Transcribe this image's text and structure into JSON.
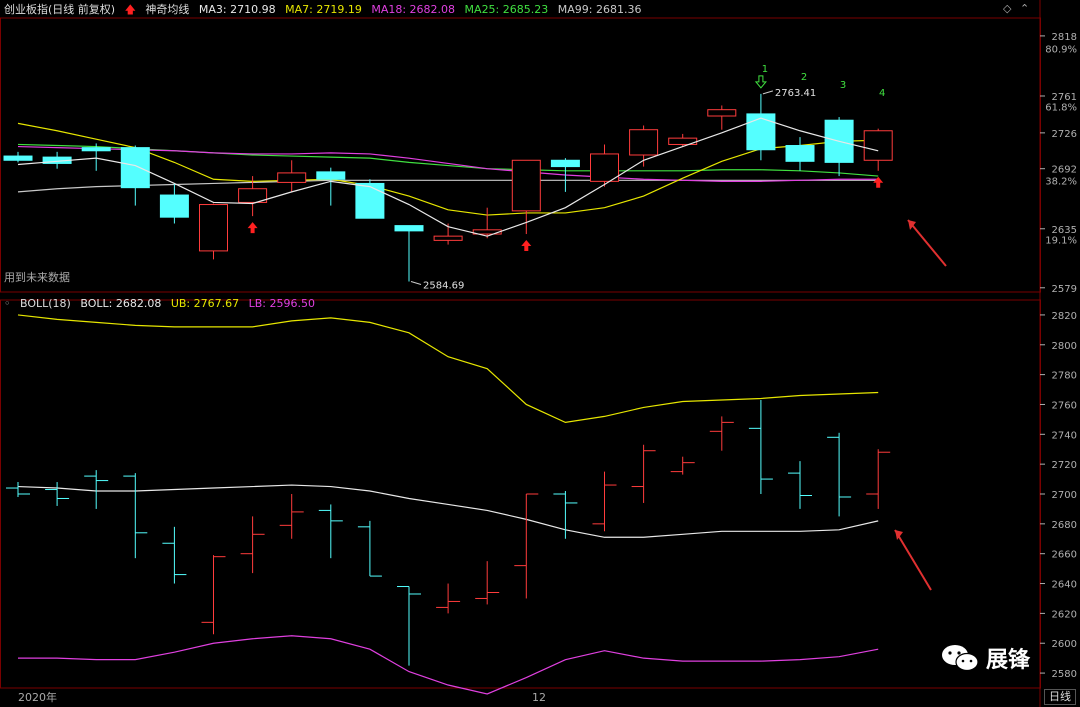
{
  "header": {
    "title": "创业板指(日线 前复权)",
    "indicator": "神奇均线",
    "ma": [
      {
        "label": "MA3: 2710.98",
        "color": "#e8e8e8"
      },
      {
        "label": "MA7: 2719.19",
        "color": "#e6e600"
      },
      {
        "label": "MA18: 2682.08",
        "color": "#e040e0"
      },
      {
        "label": "MA25: 2685.23",
        "color": "#40e040"
      },
      {
        "label": "MA99: 2681.36",
        "color": "#c8c8c8"
      }
    ]
  },
  "note": "用到未来数据",
  "boll_header": {
    "name": "BOLL(18)",
    "boll": "BOLL: 2682.08",
    "ub": "UB: 2767.67",
    "lb": "LB: 2596.50"
  },
  "bottom_axis": {
    "year": "2020年",
    "month": "12"
  },
  "period_tab": "日线",
  "watermark": "展锋",
  "colors": {
    "up": "#ff3c3c",
    "down": "#54ffff",
    "ma3": "#e8e8e8",
    "ma7": "#e6e600",
    "ma18": "#e040e0",
    "ma25": "#40e040",
    "ma99": "#c8c8c8",
    "grid": "#7a0000",
    "axis": "#b0b0b0"
  },
  "chart_data": [
    {
      "type": "candlestick",
      "title": "创业板指(日线 前复权)",
      "y_ticks": [
        2818,
        2761,
        2726,
        2692,
        2635,
        2579
      ],
      "fib_ticks": [
        {
          "label": "80.9%",
          "value": 2806
        },
        {
          "label": "61.8%",
          "value": 2751
        },
        {
          "label": "38.2%",
          "value": 2681
        },
        {
          "label": "19.1%",
          "value": 2625
        }
      ],
      "ylim": [
        2575,
        2835
      ],
      "candles": [
        {
          "o": 2704,
          "c": 2700,
          "h": 2708,
          "l": 2698
        },
        {
          "o": 2703,
          "c": 2697,
          "h": 2708,
          "l": 2692
        },
        {
          "o": 2712,
          "c": 2709,
          "h": 2716,
          "l": 2690
        },
        {
          "o": 2712,
          "c": 2674,
          "h": 2714,
          "l": 2657
        },
        {
          "o": 2667,
          "c": 2646,
          "h": 2678,
          "l": 2640
        },
        {
          "o": 2614,
          "c": 2658,
          "h": 2659,
          "l": 2606
        },
        {
          "o": 2660,
          "c": 2673,
          "h": 2685,
          "l": 2647
        },
        {
          "o": 2679,
          "c": 2688,
          "h": 2700,
          "l": 2670
        },
        {
          "o": 2689,
          "c": 2682,
          "h": 2693,
          "l": 2657
        },
        {
          "o": 2678,
          "c": 2645,
          "h": 2682,
          "l": 2645
        },
        {
          "o": 2638,
          "c": 2633,
          "h": 2638,
          "l": 2585
        },
        {
          "o": 2624,
          "c": 2628,
          "h": 2640,
          "l": 2620
        },
        {
          "o": 2630,
          "c": 2634,
          "h": 2655,
          "l": 2626
        },
        {
          "o": 2652,
          "c": 2700,
          "h": 2700,
          "l": 2630
        },
        {
          "o": 2700,
          "c": 2694,
          "h": 2702,
          "l": 2670
        },
        {
          "o": 2680,
          "c": 2706,
          "h": 2715,
          "l": 2675
        },
        {
          "o": 2705,
          "c": 2729,
          "h": 2733,
          "l": 2694
        },
        {
          "o": 2715,
          "c": 2721,
          "h": 2725,
          "l": 2713
        },
        {
          "o": 2742,
          "c": 2748,
          "h": 2752,
          "l": 2729
        },
        {
          "o": 2744,
          "c": 2710,
          "h": 2763,
          "l": 2700
        },
        {
          "o": 2714,
          "c": 2699,
          "h": 2722,
          "l": 2690
        },
        {
          "o": 2738,
          "c": 2698,
          "h": 2741,
          "l": 2685
        },
        {
          "o": 2700,
          "c": 2728,
          "h": 2730,
          "l": 2690
        }
      ],
      "ma3": [
        2696,
        2699,
        2702,
        2695,
        2678,
        2660,
        2659,
        2670,
        2680,
        2675,
        2658,
        2637,
        2628,
        2641,
        2655,
        2677,
        2700,
        2713,
        2726,
        2740,
        2728,
        2718,
        2709
      ],
      "ma7": [
        2735,
        2728,
        2720,
        2712,
        2698,
        2682,
        2680,
        2681,
        2682,
        2676,
        2666,
        2653,
        2648,
        2650,
        2650,
        2655,
        2666,
        2683,
        2699,
        2711,
        2714,
        2718,
        2719
      ],
      "ma18": [
        2713,
        2712,
        2711,
        2710,
        2709,
        2707,
        2706,
        2706,
        2707,
        2706,
        2702,
        2697,
        2692,
        2689,
        2686,
        2684,
        2682,
        2681,
        2680,
        2680,
        2681,
        2682,
        2682
      ],
      "ma25": [
        2715,
        2714,
        2713,
        2711,
        2709,
        2707,
        2705,
        2704,
        2703,
        2702,
        2698,
        2695,
        2692,
        2691,
        2690,
        2690,
        2690,
        2690,
        2691,
        2691,
        2690,
        2688,
        2685
      ],
      "ma99": [
        2670,
        2673,
        2675,
        2676,
        2677,
        2678,
        2679,
        2680,
        2681,
        2681,
        2681,
        2681,
        2681,
        2681,
        2681,
        2681,
        2681,
        2681,
        2681,
        2681,
        2681,
        2681,
        2681
      ],
      "annotations": [
        {
          "index": 19,
          "text": "2763.41"
        },
        {
          "index": 10,
          "text": "2584.69"
        }
      ],
      "markers": [
        {
          "index": 6,
          "type": "up-arrow"
        },
        {
          "index": 13,
          "type": "up-arrow"
        },
        {
          "index": 22,
          "type": "up-arrow"
        },
        {
          "index": 19,
          "type": "down-arrow"
        }
      ],
      "top_labels": [
        {
          "index": 19,
          "text": "1"
        },
        {
          "index": 20,
          "text": "2"
        },
        {
          "index": 21,
          "text": "3"
        },
        {
          "index": 22,
          "text": "4"
        }
      ]
    },
    {
      "type": "ohlc",
      "title": "BOLL(18)",
      "y_ticks": [
        2820,
        2800,
        2780,
        2760,
        2740,
        2720,
        2700,
        2680,
        2660,
        2640,
        2620,
        2600,
        2580
      ],
      "ylim": [
        2570,
        2830
      ],
      "ub": [
        2820,
        2817,
        2815,
        2813,
        2812,
        2812,
        2812,
        2816,
        2818,
        2815,
        2808,
        2792,
        2784,
        2760,
        2748,
        2752,
        2758,
        2762,
        2763,
        2764,
        2766,
        2767,
        2768
      ],
      "mid": [
        2705,
        2704,
        2702,
        2702,
        2703,
        2704,
        2705,
        2706,
        2705,
        2702,
        2697,
        2693,
        2689,
        2683,
        2676,
        2671,
        2671,
        2673,
        2675,
        2675,
        2675,
        2676,
        2682
      ],
      "lb": [
        2590,
        2590,
        2589,
        2589,
        2594,
        2600,
        2603,
        2605,
        2603,
        2596,
        2581,
        2572,
        2566,
        2577,
        2589,
        2595,
        2590,
        2588,
        2588,
        2588,
        2589,
        2591,
        2596
      ]
    }
  ]
}
